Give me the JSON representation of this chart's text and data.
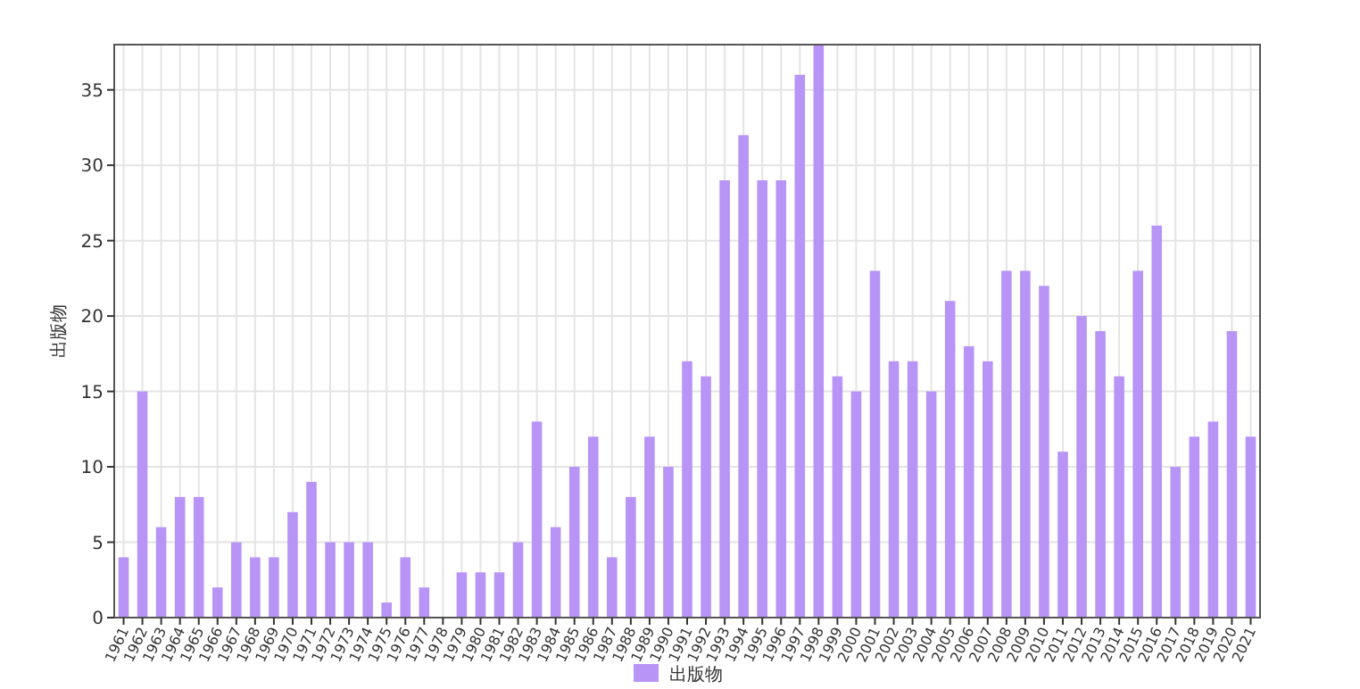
{
  "chart_data": {
    "type": "bar",
    "ylabel": "出版物",
    "categories": [
      "1961",
      "1962",
      "1963",
      "1964",
      "1965",
      "1966",
      "1967",
      "1968",
      "1969",
      "1970",
      "1971",
      "1972",
      "1973",
      "1974",
      "1975",
      "1976",
      "1977",
      "1978",
      "1979",
      "1980",
      "1981",
      "1982",
      "1983",
      "1984",
      "1985",
      "1986",
      "1987",
      "1988",
      "1989",
      "1990",
      "1991",
      "1992",
      "1993",
      "1994",
      "1995",
      "1996",
      "1997",
      "1998",
      "1999",
      "2000",
      "2001",
      "2002",
      "2003",
      "2004",
      "2005",
      "2006",
      "2007",
      "2008",
      "2009",
      "2010",
      "2011",
      "2012",
      "2013",
      "2014",
      "2015",
      "2016",
      "2017",
      "2018",
      "2019",
      "2020",
      "2021"
    ],
    "series": [
      {
        "name": "出版物",
        "color": "#b794f6",
        "values": [
          4,
          15,
          6,
          8,
          8,
          2,
          5,
          4,
          4,
          7,
          9,
          5,
          5,
          5,
          1,
          4,
          2,
          0,
          3,
          3,
          3,
          5,
          13,
          6,
          10,
          12,
          4,
          8,
          12,
          10,
          17,
          16,
          29,
          32,
          29,
          29,
          36,
          38,
          16,
          15,
          23,
          17,
          17,
          15,
          21,
          18,
          17,
          23,
          23,
          22,
          11,
          20,
          19,
          16,
          23,
          26,
          10,
          12,
          13,
          19,
          12
        ]
      }
    ],
    "ylim": [
      0,
      38
    ],
    "yticks": [
      0,
      5,
      10,
      15,
      20,
      25,
      30,
      35
    ],
    "grid": true,
    "legend": "bottom"
  }
}
